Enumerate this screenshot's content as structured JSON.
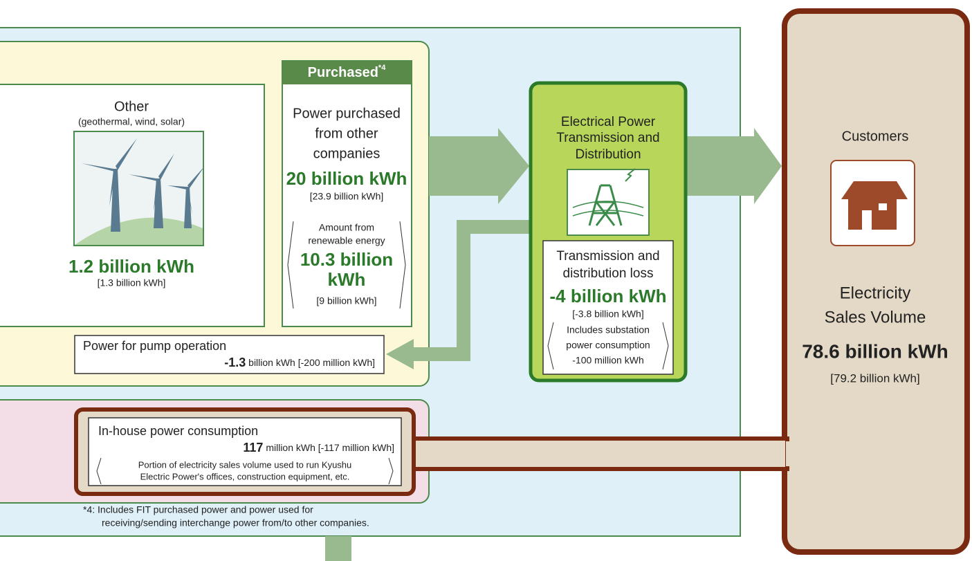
{
  "other": {
    "title": "Other",
    "subtitle": "(geothermal, wind, solar)",
    "value": "1.2 billion kWh",
    "previous": "[1.3 billion kWh]"
  },
  "purchased": {
    "header": "Purchased",
    "note_ref": "*4",
    "lines": [
      "Power purchased",
      "from other",
      "companies"
    ],
    "value": "20 billion kWh",
    "previous": "[23.9 billion kWh]",
    "renewable": {
      "label_lines": [
        "Amount from",
        "renewable energy"
      ],
      "value_lines": [
        "10.3 billion",
        "kWh"
      ],
      "previous": "[9 billion kWh]"
    }
  },
  "pump": {
    "label": "Power for pump operation",
    "value": "-1.3",
    "detail": "billion kWh [-200 million kWh]"
  },
  "transmission": {
    "title_lines": [
      "Electrical Power",
      "Transmission and",
      "Distribution"
    ],
    "loss_lines": [
      "Transmission and",
      "distribution loss"
    ],
    "value": "-4 billion kWh",
    "previous": "[-3.8 billion kWh]",
    "note_lines": [
      "Includes substation",
      "power consumption",
      "-100 million kWh"
    ]
  },
  "customers": {
    "title": "Customers",
    "label_lines": [
      "Electricity",
      "Sales Volume"
    ],
    "value": "78.6 billion kWh",
    "previous": "[79.2 billion kWh]"
  },
  "inhouse": {
    "label": "In-house power consumption",
    "value": "117",
    "detail": "million kWh [-117 million kWh]",
    "note_lines": [
      "Portion of electricity sales volume used to run Kyushu",
      "Electric Power's offices, construction equipment, etc."
    ]
  },
  "footnote": {
    "lines": [
      "*4: Includes FIT purchased power and power used for",
      "receiving/sending interchange power from/to other companies."
    ]
  }
}
